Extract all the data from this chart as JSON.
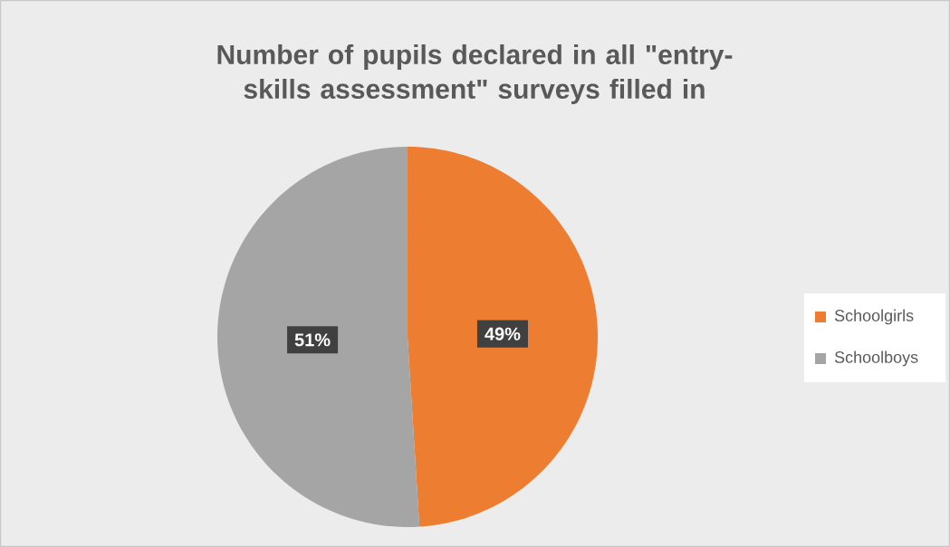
{
  "chart_data": {
    "type": "pie",
    "title": "Number of pupils declared in all \"entry-skills assessment\" surveys filled in",
    "categories": [
      "Schoolgirls",
      "Schoolboys"
    ],
    "values": [
      49,
      51
    ],
    "colors": [
      "#ed7d31",
      "#a5a5a5"
    ],
    "value_labels": [
      "49%",
      "51%"
    ],
    "legend": "right"
  }
}
